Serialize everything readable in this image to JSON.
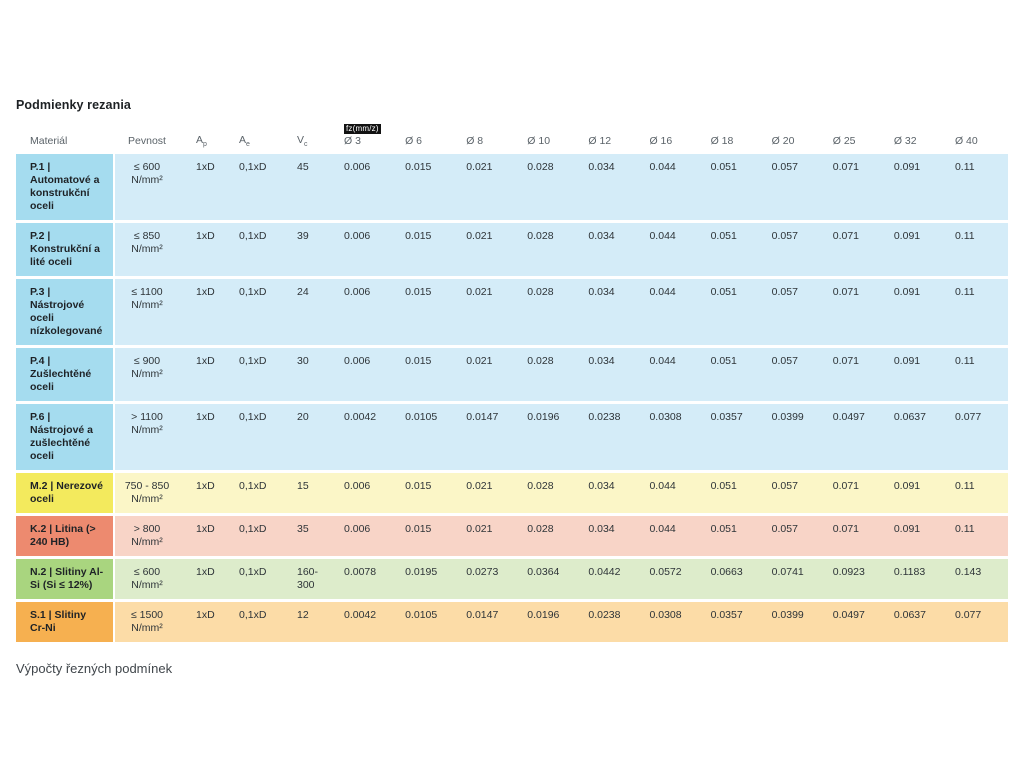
{
  "title": "Podmienky rezania",
  "footer_note": "Výpočty řezných podmínek",
  "table": {
    "feed_badge": "fz(mm/z)",
    "headers": {
      "material": "Materiál",
      "pevnost": "Pevnost",
      "ap": {
        "base": "A",
        "sub": "p"
      },
      "ae": {
        "base": "A",
        "sub": "e"
      },
      "vc": {
        "base": "V",
        "sub": "c"
      }
    },
    "diameters": [
      "Ø 3",
      "Ø 6",
      "Ø 8",
      "Ø 10",
      "Ø 12",
      "Ø 16",
      "Ø 18",
      "Ø 20",
      "Ø 25",
      "Ø 32",
      "Ø 40"
    ],
    "rows": [
      {
        "material": "P.1 | Automatové a konstrukční oceli",
        "pevnost": "≤ 600 N/mm²",
        "ap": "1xD",
        "ae": "0,1xD",
        "vc": "45",
        "feeds": [
          "0.006",
          "0.015",
          "0.021",
          "0.028",
          "0.034",
          "0.044",
          "0.051",
          "0.057",
          "0.071",
          "0.091",
          "0.11"
        ],
        "label_color": "#a5dcef",
        "row_color": "#d4ecf8"
      },
      {
        "material": "P.2 | Konstrukční a lité oceli",
        "pevnost": "≤ 850 N/mm²",
        "ap": "1xD",
        "ae": "0,1xD",
        "vc": "39",
        "feeds": [
          "0.006",
          "0.015",
          "0.021",
          "0.028",
          "0.034",
          "0.044",
          "0.051",
          "0.057",
          "0.071",
          "0.091",
          "0.11"
        ],
        "label_color": "#a5dcef",
        "row_color": "#d4ecf8"
      },
      {
        "material": "P.3 | Nástrojové oceli nízkolegované",
        "pevnost": "≤ 1100 N/mm²",
        "ap": "1xD",
        "ae": "0,1xD",
        "vc": "24",
        "feeds": [
          "0.006",
          "0.015",
          "0.021",
          "0.028",
          "0.034",
          "0.044",
          "0.051",
          "0.057",
          "0.071",
          "0.091",
          "0.11"
        ],
        "label_color": "#a5dcef",
        "row_color": "#d4ecf8"
      },
      {
        "material": "P.4 | Zušlechtěné oceli",
        "pevnost": "≤ 900 N/mm²",
        "ap": "1xD",
        "ae": "0,1xD",
        "vc": "30",
        "feeds": [
          "0.006",
          "0.015",
          "0.021",
          "0.028",
          "0.034",
          "0.044",
          "0.051",
          "0.057",
          "0.071",
          "0.091",
          "0.11"
        ],
        "label_color": "#a5dcef",
        "row_color": "#d4ecf8"
      },
      {
        "material": "P.6 | Nástrojové a zušlechtěné oceli",
        "pevnost": "> 1100 N/mm²",
        "ap": "1xD",
        "ae": "0,1xD",
        "vc": "20",
        "feeds": [
          "0.0042",
          "0.0105",
          "0.0147",
          "0.0196",
          "0.0238",
          "0.0308",
          "0.0357",
          "0.0399",
          "0.0497",
          "0.0637",
          "0.077"
        ],
        "label_color": "#a5dcef",
        "row_color": "#d4ecf8"
      },
      {
        "material": "M.2 | Nerezové oceli",
        "pevnost": "750 - 850 N/mm²",
        "ap": "1xD",
        "ae": "0,1xD",
        "vc": "15",
        "feeds": [
          "0.006",
          "0.015",
          "0.021",
          "0.028",
          "0.034",
          "0.044",
          "0.051",
          "0.057",
          "0.071",
          "0.091",
          "0.11"
        ],
        "label_color": "#f3ea5d",
        "row_color": "#fbf6c7"
      },
      {
        "material": "K.2 | Litina (> 240 HB)",
        "pevnost": "> 800 N/mm²",
        "ap": "1xD",
        "ae": "0,1xD",
        "vc": "35",
        "feeds": [
          "0.006",
          "0.015",
          "0.021",
          "0.028",
          "0.034",
          "0.044",
          "0.051",
          "0.057",
          "0.071",
          "0.091",
          "0.11"
        ],
        "label_color": "#ed8a6f",
        "row_color": "#f8d4c7"
      },
      {
        "material": "N.2 | Slitiny Al-Si (Si ≤ 12%)",
        "pevnost": "≤ 600 N/mm²",
        "ap": "1xD",
        "ae": "0,1xD",
        "vc": "160-300",
        "feeds": [
          "0.0078",
          "0.0195",
          "0.0273",
          "0.0364",
          "0.0442",
          "0.0572",
          "0.0663",
          "0.0741",
          "0.0923",
          "0.1183",
          "0.143"
        ],
        "label_color": "#a9d57f",
        "row_color": "#ddeccb"
      },
      {
        "material": "S.1 | Slitiny Cr-Ni",
        "pevnost": "≤ 1500 N/mm²",
        "ap": "1xD",
        "ae": "0,1xD",
        "vc": "12",
        "feeds": [
          "0.0042",
          "0.0105",
          "0.0147",
          "0.0196",
          "0.0238",
          "0.0308",
          "0.0357",
          "0.0399",
          "0.0497",
          "0.0637",
          "0.077"
        ],
        "label_color": "#f6b050",
        "row_color": "#fcdca7"
      }
    ]
  }
}
